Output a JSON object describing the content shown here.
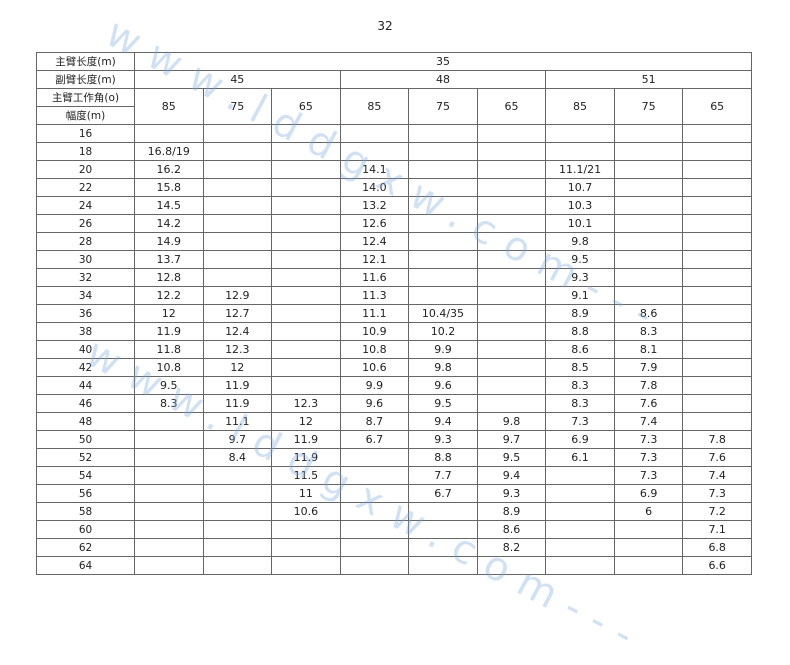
{
  "page_number": "32",
  "watermark": "www.lddgxw.com",
  "table": {
    "main_boom_label": "主臂长度(m)",
    "main_boom_value": "35",
    "jib_label": "副臂长度(m)",
    "jib_values": [
      "45",
      "48",
      "51"
    ],
    "angle_label": "主臂工作角(o)",
    "radius_label": "幅度(m)",
    "angles": [
      "85",
      "75",
      "65",
      "85",
      "75",
      "65",
      "85",
      "75",
      "65"
    ],
    "rows": [
      {
        "radius": "16",
        "values": [
          "",
          "",
          "",
          "",
          "",
          "",
          "",
          "",
          ""
        ]
      },
      {
        "radius": "18",
        "values": [
          "16.8/19",
          "",
          "",
          "",
          "",
          "",
          "",
          "",
          ""
        ]
      },
      {
        "radius": "20",
        "values": [
          "16.2",
          "",
          "",
          "14.1",
          "",
          "",
          "11.1/21",
          "",
          ""
        ]
      },
      {
        "radius": "22",
        "values": [
          "15.8",
          "",
          "",
          "14.0",
          "",
          "",
          "10.7",
          "",
          ""
        ]
      },
      {
        "radius": "24",
        "values": [
          "14.5",
          "",
          "",
          "13.2",
          "",
          "",
          "10.3",
          "",
          ""
        ]
      },
      {
        "radius": "26",
        "values": [
          "14.2",
          "",
          "",
          "12.6",
          "",
          "",
          "10.1",
          "",
          ""
        ]
      },
      {
        "radius": "28",
        "values": [
          "14.9",
          "",
          "",
          "12.4",
          "",
          "",
          "9.8",
          "",
          ""
        ]
      },
      {
        "radius": "30",
        "values": [
          "13.7",
          "",
          "",
          "12.1",
          "",
          "",
          "9.5",
          "",
          ""
        ]
      },
      {
        "radius": "32",
        "values": [
          "12.8",
          "",
          "",
          "11.6",
          "",
          "",
          "9.3",
          "",
          ""
        ]
      },
      {
        "radius": "34",
        "values": [
          "12.2",
          "12.9",
          "",
          "11.3",
          "",
          "",
          "9.1",
          "",
          ""
        ]
      },
      {
        "radius": "36",
        "values": [
          "12",
          "12.7",
          "",
          "11.1",
          "10.4/35",
          "",
          "8.9",
          "8.6",
          ""
        ]
      },
      {
        "radius": "38",
        "values": [
          "11.9",
          "12.4",
          "",
          "10.9",
          "10.2",
          "",
          "8.8",
          "8.3",
          ""
        ]
      },
      {
        "radius": "40",
        "values": [
          "11.8",
          "12.3",
          "",
          "10.8",
          "9.9",
          "",
          "8.6",
          "8.1",
          ""
        ]
      },
      {
        "radius": "42",
        "values": [
          "10.8",
          "12",
          "",
          "10.6",
          "9.8",
          "",
          "8.5",
          "7.9",
          ""
        ]
      },
      {
        "radius": "44",
        "values": [
          "9.5",
          "11.9",
          "",
          "9.9",
          "9.6",
          "",
          "8.3",
          "7.8",
          ""
        ]
      },
      {
        "radius": "46",
        "values": [
          "8.3",
          "11.9",
          "12.3",
          "9.6",
          "9.5",
          "",
          "8.3",
          "7.6",
          ""
        ]
      },
      {
        "radius": "48",
        "values": [
          "",
          "11.1",
          "12",
          "8.7",
          "9.4",
          "9.8",
          "7.3",
          "7.4",
          ""
        ]
      },
      {
        "radius": "50",
        "values": [
          "",
          "9.7",
          "11.9",
          "6.7",
          "9.3",
          "9.7",
          "6.9",
          "7.3",
          "7.8"
        ]
      },
      {
        "radius": "52",
        "values": [
          "",
          "8.4",
          "11.9",
          "",
          "8.8",
          "9.5",
          "6.1",
          "7.3",
          "7.6"
        ]
      },
      {
        "radius": "54",
        "values": [
          "",
          "",
          "11.5",
          "",
          "7.7",
          "9.4",
          "",
          "7.3",
          "7.4"
        ]
      },
      {
        "radius": "56",
        "values": [
          "",
          "",
          "11",
          "",
          "6.7",
          "9.3",
          "",
          "6.9",
          "7.3"
        ]
      },
      {
        "radius": "58",
        "values": [
          "",
          "",
          "10.6",
          "",
          "",
          "8.9",
          "",
          "6",
          "7.2"
        ]
      },
      {
        "radius": "60",
        "values": [
          "",
          "",
          "",
          "",
          "",
          "8.6",
          "",
          "",
          "7.1"
        ]
      },
      {
        "radius": "62",
        "values": [
          "",
          "",
          "",
          "",
          "",
          "8.2",
          "",
          "",
          "6.8"
        ]
      },
      {
        "radius": "64",
        "values": [
          "",
          "",
          "",
          "",
          "",
          "",
          "",
          "",
          "6.6"
        ]
      }
    ]
  }
}
